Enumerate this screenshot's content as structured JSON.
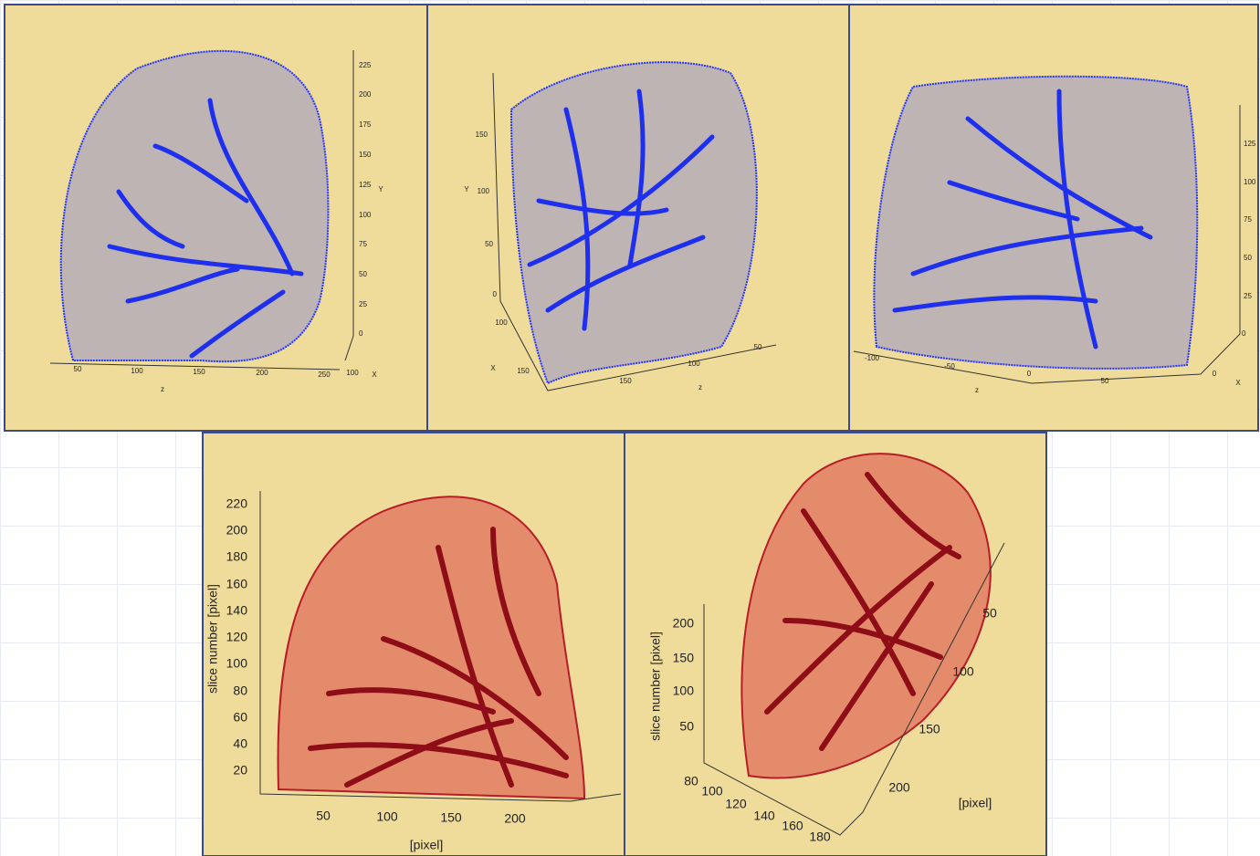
{
  "panels": [
    {
      "y_ticks": [
        "225",
        "200",
        "175",
        "150",
        "125",
        "100",
        "75",
        "50",
        "25",
        "0"
      ],
      "y_label": "Y",
      "x_ticks": [
        "100"
      ],
      "x_label": "X",
      "z_ticks": [
        "50",
        "100",
        "150",
        "200",
        "250"
      ],
      "z_label": "z"
    },
    {
      "y_ticks": [
        "150",
        "100",
        "50",
        "0"
      ],
      "y_label": "Y",
      "x_ticks": [
        "100",
        "150"
      ],
      "x_label": "X",
      "z_ticks": [
        "150",
        "100",
        "50"
      ],
      "z_label": "z"
    },
    {
      "y_ticks": [
        "125",
        "100",
        "75",
        "50",
        "25",
        "0"
      ],
      "x_ticks": [
        "0"
      ],
      "x_label": "X",
      "z_ticks": [
        "-100",
        "-50",
        "0",
        "50"
      ],
      "z_label": "z"
    },
    {
      "y_ticks": [
        "220",
        "200",
        "180",
        "160",
        "140",
        "120",
        "100",
        "80",
        "60",
        "40",
        "20"
      ],
      "y_label": "slice number [pixel]",
      "x_ticks": [
        "50",
        "100",
        "150",
        "200"
      ],
      "x_label": "[pixel]"
    },
    {
      "y_ticks": [
        "200",
        "150",
        "100",
        "50"
      ],
      "y_label": "slice number [pixel]",
      "x_ticks": [
        "80",
        "100",
        "120",
        "140",
        "160",
        "180"
      ],
      "z_ticks": [
        "50",
        "100",
        "150",
        "200"
      ],
      "z_label": "[pixel]"
    }
  ]
}
